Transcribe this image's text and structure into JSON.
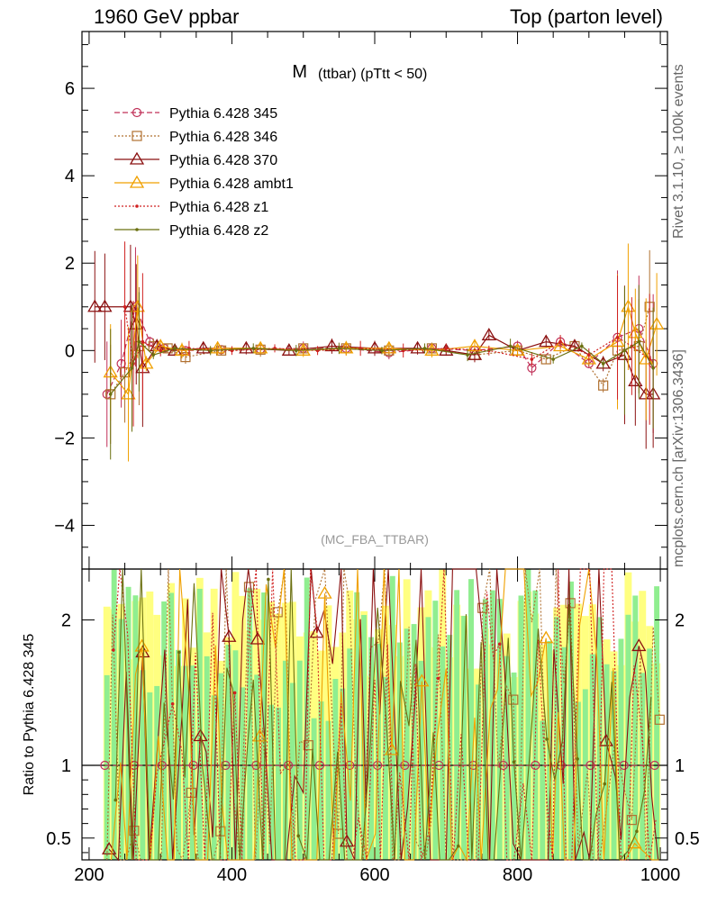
{
  "header": {
    "left": "1960 GeV ppbar",
    "right": "Top (parton level)"
  },
  "side_labels": {
    "rivet": "Rivet 3.1.10, ≥ 100k events",
    "mcplots": "mcplots.cern.ch [arXiv:1306.3436]"
  },
  "chart_data": [
    {
      "type": "line",
      "title_main": "M",
      "title_sub": "(ttbar) (pTtt < 50)",
      "watermark": "(MC_FBA_TTBAR)",
      "xlim": [
        190,
        1010
      ],
      "ylim": [
        -5,
        7.3
      ],
      "y_ticks": [
        "−4",
        "−2",
        "0",
        "2",
        "4",
        "6"
      ],
      "legend_position": "top-left",
      "series": [
        {
          "name": "Pythia 6.428 345",
          "color": "#c03058",
          "style": "dashed",
          "marker": "circle",
          "x": [
            225,
            245,
            265,
            285,
            305,
            335,
            385,
            440,
            500,
            560,
            620,
            680,
            740,
            800,
            820,
            860,
            900,
            940,
            970,
            990
          ],
          "y": [
            -1.0,
            -0.3,
            1.0,
            0.2,
            0.05,
            0.0,
            0.02,
            0.03,
            0.05,
            0.05,
            -0.05,
            0.05,
            0.0,
            0.1,
            -0.4,
            0.2,
            -0.3,
            0.3,
            0.5,
            -0.3
          ]
        },
        {
          "name": "Pythia 6.428 346",
          "color": "#b07030",
          "style": "dotted",
          "marker": "square",
          "x": [
            230,
            250,
            270,
            290,
            310,
            335,
            385,
            440,
            500,
            560,
            620,
            680,
            740,
            800,
            840,
            880,
            920,
            940,
            970,
            985
          ],
          "y": [
            -1.0,
            -0.5,
            0.1,
            0.1,
            0.05,
            -0.15,
            0.0,
            0.02,
            0.05,
            0.05,
            0.0,
            0.05,
            -0.1,
            0.0,
            -0.2,
            0.1,
            -0.8,
            0.0,
            0.1,
            1.0
          ]
        },
        {
          "name": "Pythia 6.428 370",
          "color": "#8b1010",
          "style": "solid",
          "marker": "triangle",
          "x": [
            208,
            222,
            258,
            266,
            275,
            295,
            320,
            360,
            420,
            480,
            540,
            600,
            660,
            700,
            740,
            760,
            800,
            840,
            880,
            920,
            950,
            965,
            980,
            990
          ],
          "y": [
            1.0,
            1.0,
            1.0,
            0.6,
            -0.4,
            0.1,
            0.0,
            0.05,
            0.05,
            0.0,
            0.1,
            0.05,
            0.05,
            0.0,
            -0.1,
            0.35,
            0.0,
            0.2,
            0.1,
            -0.3,
            -0.1,
            -0.7,
            -1.0,
            -1.0
          ]
        },
        {
          "name": "Pythia 6.428 ambt1",
          "color": "#f0a000",
          "style": "solid",
          "marker": "triangle",
          "x": [
            230,
            255,
            268,
            280,
            300,
            330,
            380,
            440,
            500,
            560,
            620,
            680,
            740,
            800,
            860,
            900,
            940,
            955,
            965,
            980,
            995
          ],
          "y": [
            -0.5,
            -1.0,
            1.0,
            -0.3,
            0.1,
            0.0,
            0.05,
            0.05,
            0.0,
            0.05,
            0.05,
            0.0,
            0.1,
            0.0,
            0.1,
            -0.2,
            0.2,
            1.0,
            0.4,
            -0.2,
            0.6
          ]
        },
        {
          "name": "Pythia 6.428 z1",
          "color": "#d02020",
          "style": "dotted",
          "marker": "dot",
          "x": [
            250,
            262,
            275,
            300,
            340,
            400,
            460,
            520,
            580,
            640,
            700,
            760,
            820,
            860,
            900,
            940,
            960,
            985
          ],
          "y": [
            1.0,
            -0.3,
            0.2,
            0.0,
            0.05,
            0.0,
            0.05,
            0.0,
            0.05,
            0.0,
            0.05,
            0.0,
            -0.2,
            0.2,
            -0.1,
            0.3,
            0.1,
            -0.2
          ]
        },
        {
          "name": "Pythia 6.428 z2",
          "color": "#6b7010",
          "style": "solid",
          "marker": "dot",
          "x": [
            230,
            260,
            270,
            290,
            320,
            370,
            430,
            490,
            550,
            610,
            670,
            730,
            790,
            850,
            890,
            920,
            950,
            970,
            990
          ],
          "y": [
            -1.0,
            -0.4,
            0.2,
            -0.1,
            0.05,
            0.0,
            0.05,
            0.0,
            0.05,
            0.0,
            0.05,
            -0.1,
            0.1,
            -0.2,
            0.1,
            -0.3,
            0.0,
            0.2,
            -0.4
          ]
        }
      ]
    },
    {
      "type": "line",
      "ylabel": "Ratio to Pythia 6.428 345",
      "xlim": [
        190,
        1010
      ],
      "ylim": [
        0.35,
        2.35
      ],
      "x_ticks": [
        "200",
        "400",
        "600",
        "800",
        "1000"
      ],
      "y_ticks": [
        "0.5",
        "1",
        "2"
      ],
      "reference_line": 1,
      "band_colors": {
        "inner": "#90ee90",
        "outer": "#ffff80"
      }
    }
  ]
}
